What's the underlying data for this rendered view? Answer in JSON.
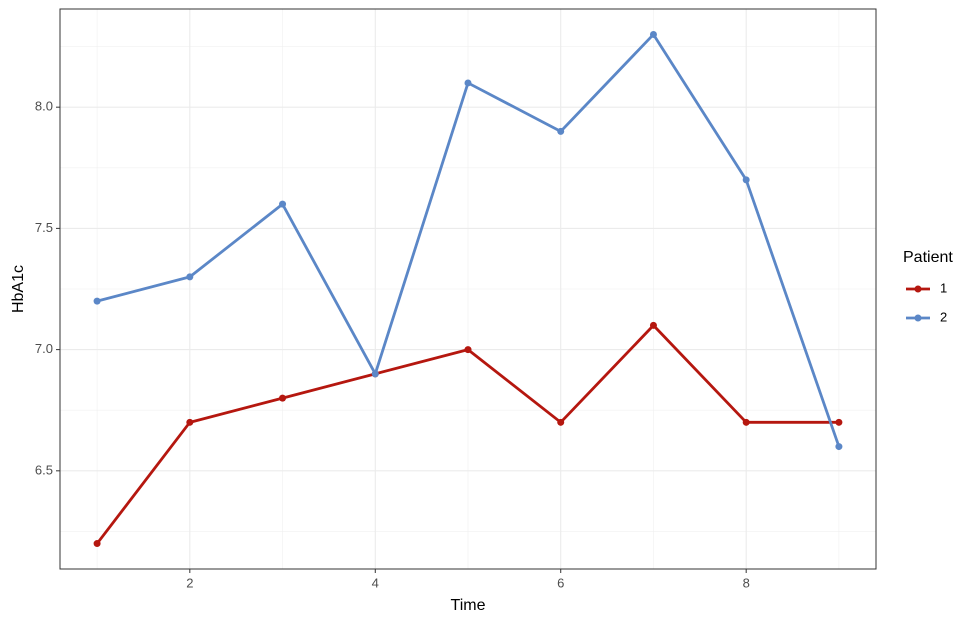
{
  "chart_data": {
    "type": "line",
    "x_label": "Time",
    "y_label": "HbA1c",
    "x": [
      1,
      2,
      3,
      4,
      5,
      6,
      7,
      8,
      9
    ],
    "series": [
      {
        "name": "1",
        "color": "#b5170f",
        "values": [
          6.2,
          6.7,
          6.8,
          6.9,
          7.0,
          6.7,
          7.1,
          6.7,
          6.7
        ]
      },
      {
        "name": "2",
        "color": "#5b87c7",
        "values": [
          7.2,
          7.3,
          7.6,
          6.9,
          8.1,
          7.9,
          8.3,
          7.7,
          6.6
        ]
      }
    ],
    "legend_title": "Patient",
    "legend": "right",
    "xlim": [
      0.6,
      9.4
    ],
    "xticks": [
      2,
      4,
      6,
      8
    ],
    "minor_xticks": [
      1,
      3,
      5,
      7,
      9
    ],
    "ylim": [
      6.095,
      8.405
    ],
    "yticks": [
      {
        "value": 6.5,
        "label": "6.5"
      },
      {
        "value": 7,
        "label": "7.0"
      },
      {
        "value": 7.5,
        "label": "7.5"
      },
      {
        "value": 8,
        "label": "8.0"
      }
    ],
    "minor_yticks": [
      6.25,
      6.75,
      7.25,
      7.75,
      8.25
    ],
    "grid": true
  }
}
